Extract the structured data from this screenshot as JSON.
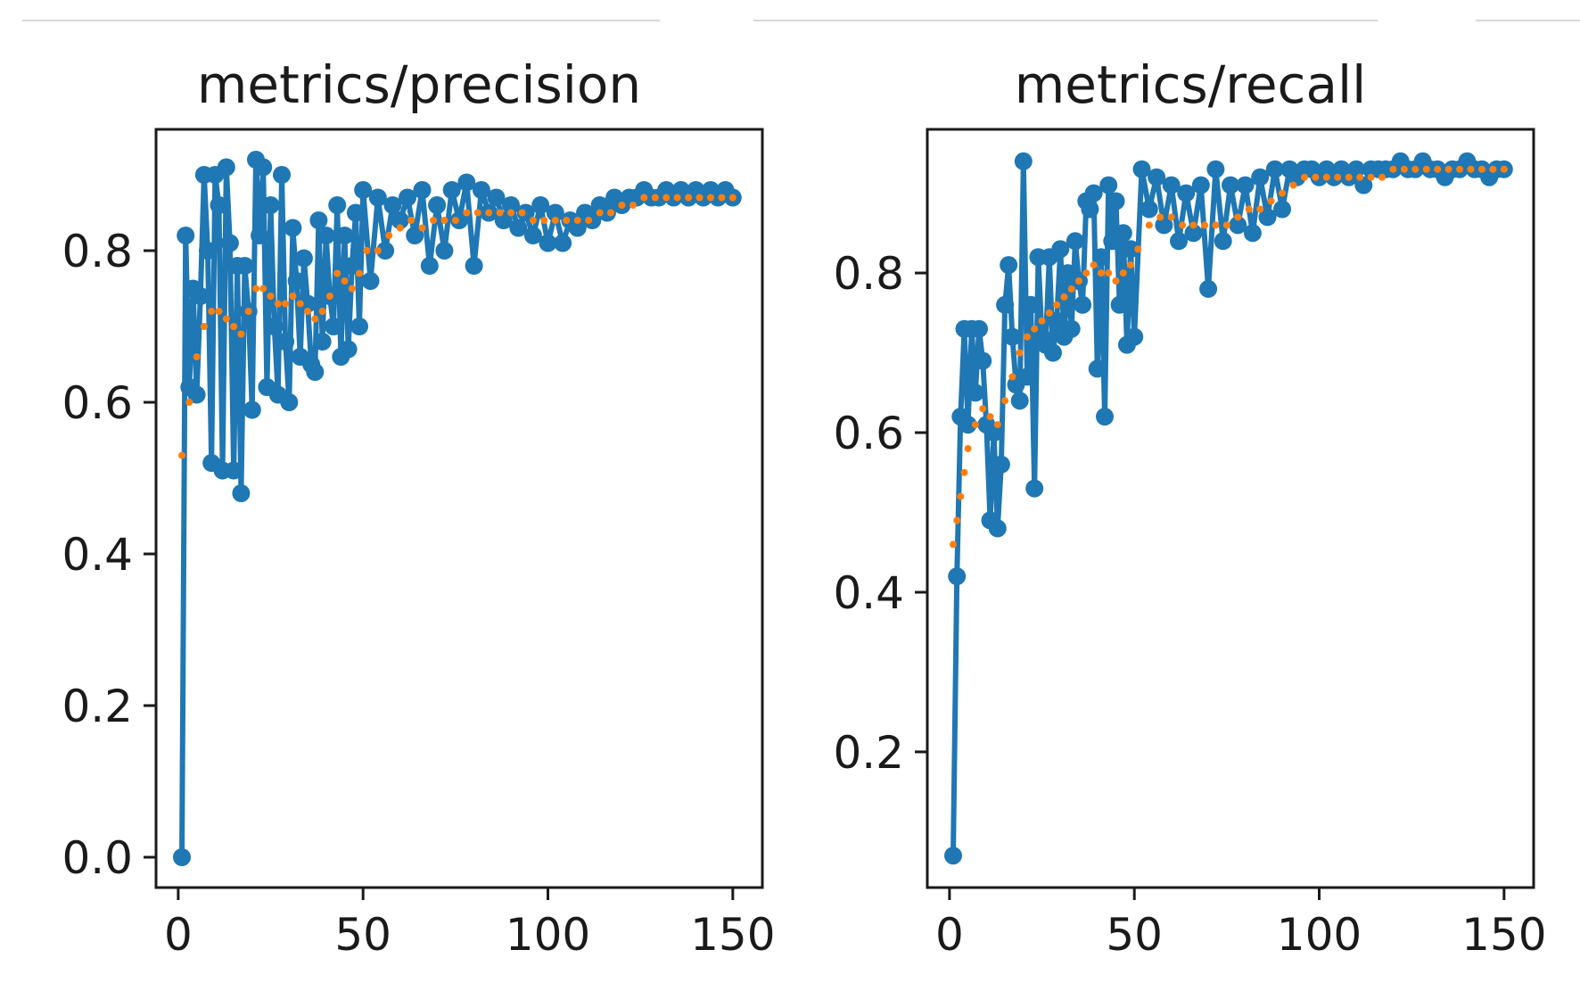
{
  "colors": {
    "raw": "#1f77b4",
    "smooth": "#ff7f0e",
    "axis": "#1a1a1a",
    "rule": "#d8d8d8"
  },
  "chart_data": [
    {
      "type": "line",
      "title": "metrics/precision",
      "xlabel": "",
      "ylabel": "",
      "xlim": [
        -6,
        158
      ],
      "ylim": [
        -0.04,
        0.96
      ],
      "xticks": [
        0,
        50,
        100,
        150
      ],
      "xtick_labels": [
        "0",
        "50",
        "100",
        "150"
      ],
      "yticks": [
        0.0,
        0.2,
        0.4,
        0.6,
        0.8
      ],
      "ytick_labels": [
        "0.0",
        "0.2",
        "0.4",
        "0.6",
        "0.8"
      ],
      "grid": false,
      "series": [
        {
          "style": "line-marker",
          "x": [
            1,
            2,
            3,
            4,
            5,
            6,
            7,
            8,
            9,
            10,
            11,
            12,
            13,
            14,
            15,
            16,
            17,
            18,
            19,
            20,
            21,
            22,
            23,
            24,
            25,
            26,
            27,
            28,
            29,
            30,
            31,
            32,
            33,
            34,
            35,
            36,
            37,
            38,
            39,
            40,
            41,
            42,
            43,
            44,
            45,
            46,
            47,
            48,
            49,
            50,
            52,
            54,
            56,
            58,
            60,
            62,
            64,
            66,
            68,
            70,
            72,
            74,
            76,
            78,
            80,
            82,
            84,
            86,
            88,
            90,
            92,
            94,
            96,
            98,
            100,
            102,
            104,
            106,
            108,
            110,
            112,
            114,
            116,
            118,
            120,
            122,
            124,
            126,
            128,
            130,
            132,
            134,
            136,
            138,
            140,
            142,
            144,
            146,
            148,
            150
          ],
          "y": [
            0.0,
            0.82,
            0.62,
            0.75,
            0.61,
            0.74,
            0.9,
            0.8,
            0.52,
            0.9,
            0.86,
            0.51,
            0.91,
            0.81,
            0.51,
            0.78,
            0.48,
            0.78,
            0.72,
            0.59,
            0.92,
            0.82,
            0.91,
            0.62,
            0.86,
            0.7,
            0.61,
            0.9,
            0.68,
            0.6,
            0.83,
            0.76,
            0.66,
            0.79,
            0.73,
            0.65,
            0.64,
            0.84,
            0.68,
            0.82,
            0.74,
            0.7,
            0.86,
            0.66,
            0.82,
            0.67,
            0.78,
            0.85,
            0.7,
            0.88,
            0.76,
            0.87,
            0.8,
            0.86,
            0.84,
            0.87,
            0.82,
            0.88,
            0.78,
            0.86,
            0.8,
            0.88,
            0.84,
            0.89,
            0.78,
            0.88,
            0.85,
            0.87,
            0.84,
            0.86,
            0.83,
            0.85,
            0.82,
            0.86,
            0.81,
            0.85,
            0.81,
            0.84,
            0.83,
            0.85,
            0.84,
            0.86,
            0.85,
            0.87,
            0.86,
            0.87,
            0.87,
            0.88,
            0.87,
            0.87,
            0.88,
            0.87,
            0.88,
            0.87,
            0.88,
            0.87,
            0.88,
            0.87,
            0.88,
            0.87
          ]
        },
        {
          "style": "dotted",
          "x": [
            1,
            3,
            5,
            7,
            9,
            11,
            13,
            15,
            17,
            19,
            21,
            23,
            25,
            27,
            29,
            31,
            33,
            35,
            37,
            39,
            41,
            43,
            45,
            47,
            49,
            51,
            54,
            57,
            60,
            63,
            66,
            69,
            72,
            75,
            78,
            81,
            84,
            87,
            90,
            93,
            96,
            99,
            102,
            105,
            108,
            111,
            114,
            117,
            120,
            123,
            126,
            129,
            132,
            135,
            138,
            141,
            144,
            147,
            150
          ],
          "y": [
            0.53,
            0.6,
            0.66,
            0.7,
            0.72,
            0.72,
            0.71,
            0.7,
            0.69,
            0.72,
            0.75,
            0.75,
            0.74,
            0.73,
            0.73,
            0.74,
            0.73,
            0.72,
            0.71,
            0.72,
            0.74,
            0.77,
            0.76,
            0.75,
            0.77,
            0.8,
            0.8,
            0.82,
            0.83,
            0.84,
            0.83,
            0.84,
            0.84,
            0.84,
            0.85,
            0.85,
            0.85,
            0.85,
            0.85,
            0.85,
            0.84,
            0.84,
            0.84,
            0.84,
            0.84,
            0.84,
            0.85,
            0.85,
            0.86,
            0.86,
            0.87,
            0.87,
            0.87,
            0.87,
            0.87,
            0.87,
            0.87,
            0.87,
            0.87
          ]
        }
      ]
    },
    {
      "type": "line",
      "title": "metrics/recall",
      "xlabel": "",
      "ylabel": "",
      "xlim": [
        -6,
        158
      ],
      "ylim": [
        0.03,
        0.98
      ],
      "xticks": [
        0,
        50,
        100,
        150
      ],
      "xtick_labels": [
        "0",
        "50",
        "100",
        "150"
      ],
      "yticks": [
        0.2,
        0.4,
        0.6,
        0.8
      ],
      "ytick_labels": [
        "0.2",
        "0.4",
        "0.6",
        "0.8"
      ],
      "grid": false,
      "series": [
        {
          "style": "line-marker",
          "x": [
            1,
            2,
            3,
            4,
            5,
            6,
            7,
            8,
            9,
            10,
            11,
            12,
            13,
            14,
            15,
            16,
            17,
            18,
            19,
            20,
            21,
            22,
            23,
            24,
            25,
            26,
            27,
            28,
            29,
            30,
            31,
            32,
            33,
            34,
            35,
            36,
            37,
            38,
            39,
            40,
            41,
            42,
            43,
            44,
            45,
            46,
            47,
            48,
            49,
            50,
            52,
            54,
            56,
            58,
            60,
            62,
            64,
            66,
            68,
            70,
            72,
            74,
            76,
            78,
            80,
            82,
            84,
            86,
            88,
            90,
            92,
            94,
            96,
            98,
            100,
            102,
            104,
            106,
            108,
            110,
            112,
            114,
            116,
            118,
            120,
            122,
            124,
            126,
            128,
            130,
            132,
            134,
            136,
            138,
            140,
            142,
            144,
            146,
            148,
            150
          ],
          "y": [
            0.07,
            0.42,
            0.62,
            0.73,
            0.61,
            0.73,
            0.65,
            0.73,
            0.69,
            0.61,
            0.49,
            0.6,
            0.48,
            0.56,
            0.76,
            0.81,
            0.72,
            0.66,
            0.64,
            0.94,
            0.67,
            0.76,
            0.53,
            0.82,
            0.72,
            0.71,
            0.82,
            0.7,
            0.74,
            0.83,
            0.72,
            0.8,
            0.73,
            0.84,
            0.79,
            0.76,
            0.89,
            0.88,
            0.9,
            0.68,
            0.82,
            0.62,
            0.91,
            0.84,
            0.89,
            0.76,
            0.85,
            0.71,
            0.83,
            0.72,
            0.93,
            0.88,
            0.92,
            0.86,
            0.91,
            0.84,
            0.9,
            0.85,
            0.91,
            0.78,
            0.93,
            0.84,
            0.91,
            0.86,
            0.91,
            0.85,
            0.92,
            0.87,
            0.93,
            0.88,
            0.93,
            0.92,
            0.93,
            0.93,
            0.92,
            0.93,
            0.92,
            0.93,
            0.92,
            0.93,
            0.91,
            0.93,
            0.93,
            0.93,
            0.93,
            0.94,
            0.93,
            0.93,
            0.94,
            0.93,
            0.93,
            0.92,
            0.93,
            0.93,
            0.94,
            0.93,
            0.93,
            0.92,
            0.93,
            0.93
          ]
        },
        {
          "style": "dotted",
          "x": [
            1,
            2,
            3,
            4,
            5,
            7,
            9,
            11,
            13,
            15,
            17,
            19,
            21,
            23,
            25,
            27,
            29,
            31,
            33,
            35,
            37,
            39,
            41,
            43,
            45,
            47,
            49,
            51,
            54,
            57,
            60,
            63,
            66,
            69,
            72,
            75,
            78,
            81,
            84,
            87,
            90,
            93,
            96,
            99,
            102,
            105,
            108,
            111,
            114,
            117,
            120,
            123,
            126,
            129,
            132,
            135,
            138,
            141,
            144,
            147,
            150
          ],
          "y": [
            0.46,
            0.49,
            0.52,
            0.55,
            0.58,
            0.61,
            0.63,
            0.62,
            0.61,
            0.64,
            0.67,
            0.7,
            0.72,
            0.73,
            0.74,
            0.75,
            0.76,
            0.77,
            0.78,
            0.79,
            0.8,
            0.81,
            0.8,
            0.8,
            0.79,
            0.8,
            0.81,
            0.83,
            0.86,
            0.87,
            0.87,
            0.86,
            0.86,
            0.86,
            0.86,
            0.86,
            0.87,
            0.88,
            0.88,
            0.89,
            0.9,
            0.91,
            0.92,
            0.92,
            0.92,
            0.92,
            0.92,
            0.92,
            0.92,
            0.92,
            0.93,
            0.93,
            0.93,
            0.93,
            0.93,
            0.93,
            0.93,
            0.93,
            0.93,
            0.93,
            0.93
          ]
        }
      ]
    }
  ]
}
